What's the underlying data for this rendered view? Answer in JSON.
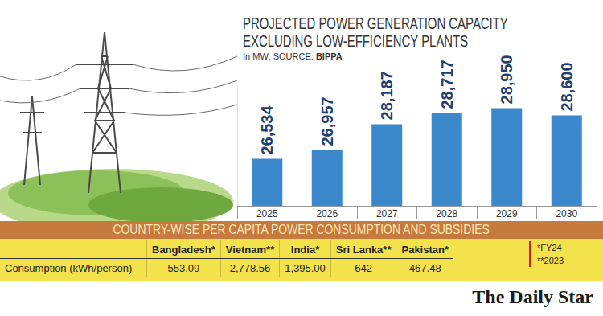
{
  "chart_data": {
    "type": "bar",
    "title": "PROJECTED POWER GENERATION CAPACITY EXCLUDING LOW-EFFICIENCY PLANTS",
    "subtitle": "In MW; SOURCE:",
    "source": "BIPPA",
    "categories": [
      "2025",
      "2026",
      "2027",
      "2028",
      "2029",
      "2030"
    ],
    "values": [
      26534,
      26957,
      28187,
      28717,
      28950,
      28600
    ],
    "value_labels": [
      "26,534",
      "26,957",
      "28,187",
      "28,717",
      "28,950",
      "28,600"
    ],
    "color": "#3b88cc",
    "ylim": [
      24300,
      30000
    ],
    "data_labels": true,
    "tick_labels": "x",
    "grid": false
  },
  "banner": "COUNTRY-WISE PER CAPITA POWER CONSUMPTION AND SUBSIDIES",
  "table": {
    "columns": [
      "Bangladesh*",
      "Vietnam**",
      "India*",
      "Sri Lanka**",
      "Pakistan*"
    ],
    "rows": [
      {
        "label": "Consumption (kWh/person)",
        "cells": [
          "553.09",
          "2,778.56",
          "1,395.00",
          "642",
          "467.48"
        ]
      }
    ]
  },
  "footnotes": [
    "*FY24",
    "**2023"
  ],
  "logo": "The Daily Star"
}
